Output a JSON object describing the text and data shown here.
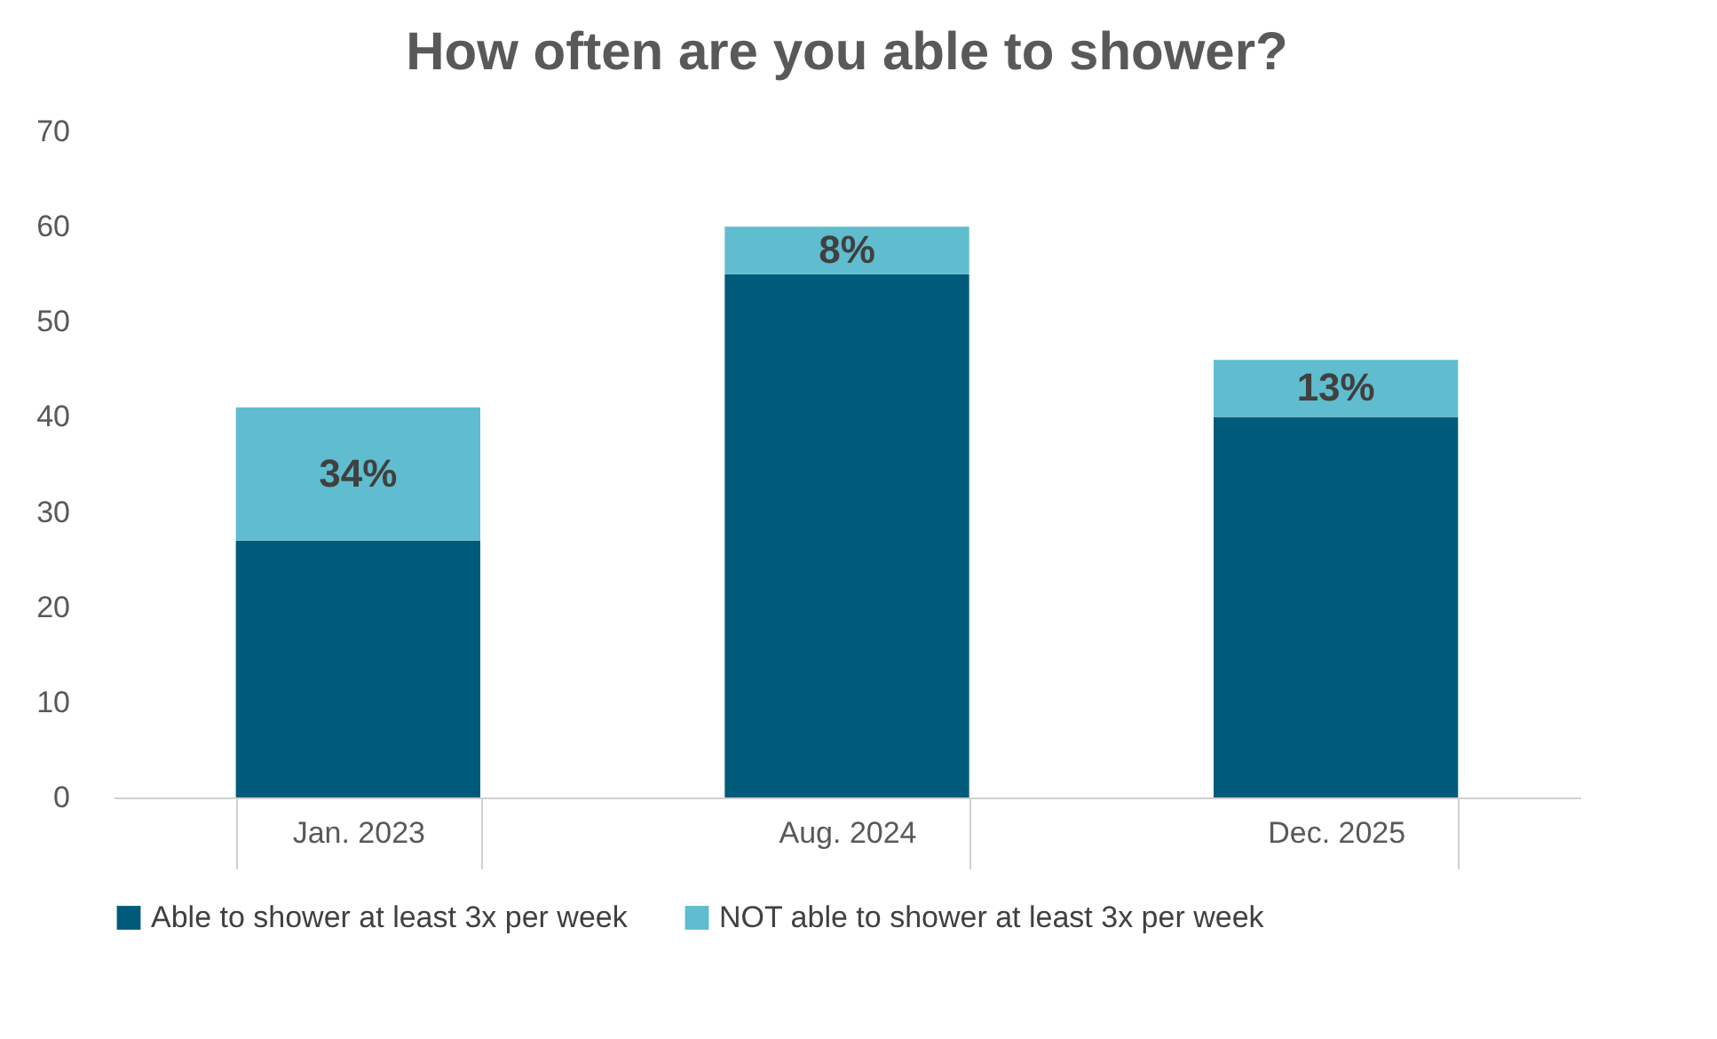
{
  "chart_data": {
    "type": "bar",
    "title": "How often are you able to shower?",
    "categories": [
      "Jan. 2023",
      "Aug. 2024",
      "Dec. 2025"
    ],
    "stacked": true,
    "series": [
      {
        "name": "Able to shower at least 3x per week",
        "color": "#005b7b",
        "values": [
          27,
          55,
          40
        ]
      },
      {
        "name": "NOT able to shower at least 3x per week",
        "color": "#5fbdcf",
        "values": [
          14,
          5,
          6
        ]
      }
    ],
    "annotations": [
      "34%",
      "8%",
      "13%"
    ],
    "ylim": [
      0,
      70
    ],
    "yticks": [
      0,
      10,
      20,
      30,
      40,
      50,
      60,
      70
    ],
    "grid": false,
    "legend": "bottom"
  }
}
